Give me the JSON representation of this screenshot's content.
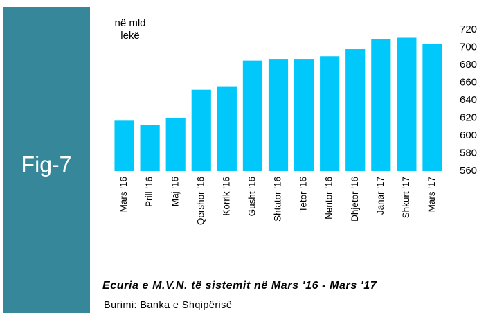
{
  "chart_data": {
    "type": "bar",
    "panel_label": "Fig-7",
    "y_axis_label": [
      "në mld",
      "lekë"
    ],
    "title": "Ecuria e M.V.N. të sistemit në Mars '16  - Mars '17",
    "source": "Burimi: Banka e Shqipërisë",
    "categories": [
      "Mars '16",
      "Prill '16",
      "Maj '16",
      "Qershor '16",
      "Korrik '16",
      "Gusht '16",
      "Shtator '16",
      "Tetor '16",
      "Nentor '16",
      "Dhjetor '16",
      "Janar '17",
      "Shkurt '17",
      "Mars '17"
    ],
    "values": [
      617,
      612,
      620,
      652,
      656,
      685,
      687,
      687,
      690,
      698,
      709,
      711,
      704
    ],
    "color": "#00c8fa",
    "panel_color": "#37879a",
    "ylim": [
      560,
      720
    ],
    "yticks": [
      560,
      580,
      600,
      620,
      640,
      660,
      680,
      700,
      720
    ],
    "grid": false
  }
}
